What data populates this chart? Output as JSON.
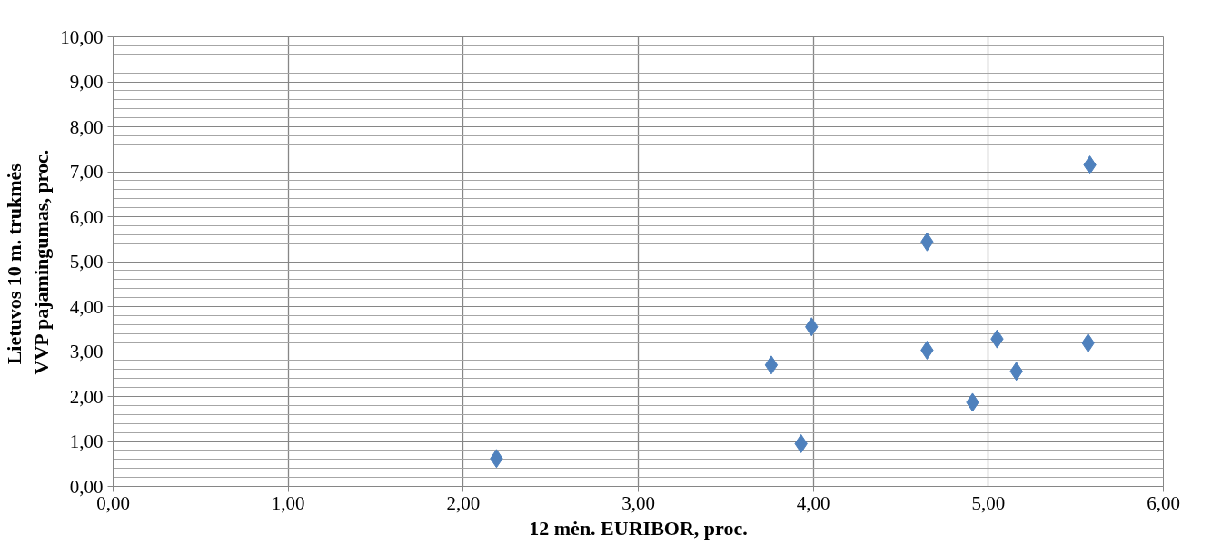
{
  "chart_data": {
    "type": "scatter",
    "xlabel": "12 mėn. EURIBOR, proc.",
    "ylabel": "Lietuvos 10  m. trukmės VVP pajamingumas, proc.",
    "x": [
      2.19,
      3.93,
      3.76,
      3.99,
      4.65,
      4.65,
      4.91,
      5.05,
      5.16,
      5.57,
      5.58
    ],
    "series": [
      {
        "color": "#4f81bd",
        "values": [
          0.62,
          0.95,
          2.7,
          3.55,
          5.44,
          3.03,
          1.87,
          3.28,
          2.56,
          3.19,
          7.15
        ]
      }
    ],
    "marker": "diamond",
    "grid": true,
    "xlim": [
      0,
      6
    ],
    "ylim": [
      0,
      10
    ],
    "xticks": [
      {
        "value": 0,
        "label": "0,00"
      },
      {
        "value": 1,
        "label": "1,00"
      },
      {
        "value": 2,
        "label": "2,00"
      },
      {
        "value": 3,
        "label": "3,00"
      },
      {
        "value": 4,
        "label": "4,00"
      },
      {
        "value": 5,
        "label": "5,00"
      },
      {
        "value": 6,
        "label": "6,00"
      }
    ],
    "yticks": [
      {
        "value": 0,
        "label": "0,00"
      },
      {
        "value": 1,
        "label": "1,00"
      },
      {
        "value": 2,
        "label": "2,00"
      },
      {
        "value": 3,
        "label": "3,00"
      },
      {
        "value": 4,
        "label": "4,00"
      },
      {
        "value": 5,
        "label": "5,00"
      },
      {
        "value": 6,
        "label": "6,00"
      },
      {
        "value": 7,
        "label": "7,00"
      },
      {
        "value": 8,
        "label": "8,00"
      },
      {
        "value": 9,
        "label": "9,00"
      },
      {
        "value": 10,
        "label": "10,00"
      }
    ]
  }
}
